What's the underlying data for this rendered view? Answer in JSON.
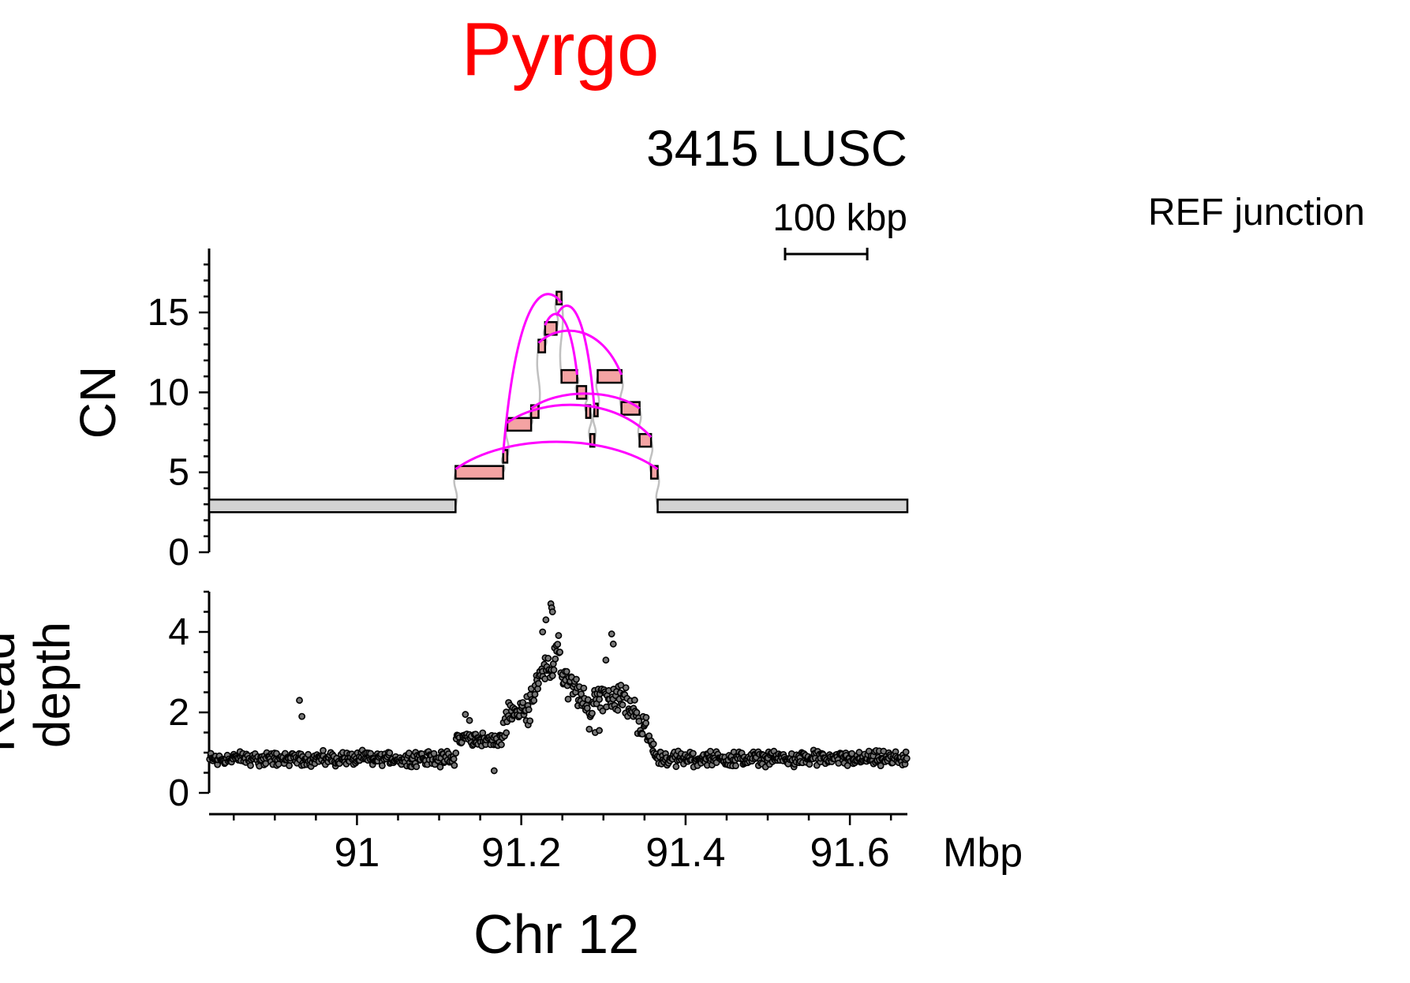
{
  "title": "Pyrgo",
  "subtitle": "3415 LUSC",
  "scale_bar_label": "100 kbp",
  "legend_label": "REF junction",
  "x_axis_label": "Chr 12",
  "x_unit_label": "Mbp",
  "colors": {
    "title": "#ff0000",
    "segment_fill": "#f4a3a3",
    "ref_segment_fill": "#d3d3d3",
    "junction": "#ff00ff",
    "connector": "#c0c0c0",
    "points": "#000000"
  },
  "chart_data": [
    {
      "type": "bar",
      "name": "copy-number-segments",
      "ylabel": "CN",
      "ylim": [
        0,
        19
      ],
      "xlim": [
        90.82,
        91.67
      ],
      "yticks": [
        0,
        5,
        10,
        15
      ],
      "scale_bar_mbp": 0.1,
      "segments": [
        {
          "x0": 90.82,
          "x1": 91.12,
          "cn": 2.9,
          "ref": true
        },
        {
          "x0": 91.12,
          "x1": 91.178,
          "cn": 5.0
        },
        {
          "x0": 91.178,
          "x1": 91.183,
          "cn": 6.0
        },
        {
          "x0": 91.183,
          "x1": 91.212,
          "cn": 8.0
        },
        {
          "x0": 91.212,
          "x1": 91.221,
          "cn": 8.8
        },
        {
          "x0": 91.221,
          "x1": 91.229,
          "cn": 12.9
        },
        {
          "x0": 91.229,
          "x1": 91.243,
          "cn": 14.0
        },
        {
          "x0": 91.243,
          "x1": 91.249,
          "cn": 15.9
        },
        {
          "x0": 91.249,
          "x1": 91.268,
          "cn": 11.0
        },
        {
          "x0": 91.268,
          "x1": 91.279,
          "cn": 10.0
        },
        {
          "x0": 91.279,
          "x1": 91.284,
          "cn": 8.8
        },
        {
          "x0": 91.284,
          "x1": 91.289,
          "cn": 7.0
        },
        {
          "x0": 91.289,
          "x1": 91.293,
          "cn": 8.9
        },
        {
          "x0": 91.293,
          "x1": 91.322,
          "cn": 11.0
        },
        {
          "x0": 91.322,
          "x1": 91.344,
          "cn": 9.0
        },
        {
          "x0": 91.344,
          "x1": 91.358,
          "cn": 7.0
        },
        {
          "x0": 91.358,
          "x1": 91.366,
          "cn": 5.0
        },
        {
          "x0": 91.366,
          "x1": 91.67,
          "cn": 2.9,
          "ref": true
        }
      ],
      "junctions": [
        {
          "x0": 91.12,
          "y0": 5.2,
          "x1": 91.366,
          "y1": 5.2
        },
        {
          "x0": 91.183,
          "y0": 8.1,
          "x1": 91.358,
          "y1": 7.2
        },
        {
          "x0": 91.212,
          "y0": 9.0,
          "x1": 91.344,
          "y1": 9.0
        },
        {
          "x0": 91.221,
          "y0": 13.1,
          "x1": 91.322,
          "y1": 11.1
        },
        {
          "x0": 91.229,
          "y0": 14.2,
          "x1": 91.268,
          "y1": 11.1
        },
        {
          "x0": 91.178,
          "y0": 6.2,
          "x1": 91.249,
          "y1": 15.6
        },
        {
          "x0": 91.243,
          "y0": 14.8,
          "x1": 91.289,
          "y1": 9.0
        }
      ]
    },
    {
      "type": "scatter",
      "name": "read-depth",
      "ylabel": "Read depth",
      "xlabel": "Chr 12",
      "ylim": [
        0,
        5
      ],
      "xlim": [
        90.82,
        91.67
      ],
      "yticks": [
        0,
        2,
        4
      ],
      "xticks": [
        91,
        91.2,
        91.4,
        91.6
      ],
      "xtick_labels": [
        "91",
        "91.2",
        "91.4",
        "91.6"
      ],
      "profile": [
        {
          "x": 90.82,
          "y": 0.85
        },
        {
          "x": 91.12,
          "y": 0.85
        },
        {
          "x": 91.121,
          "y": 1.35
        },
        {
          "x": 91.15,
          "y": 1.35
        },
        {
          "x": 91.175,
          "y": 1.25
        },
        {
          "x": 91.183,
          "y": 2.0
        },
        {
          "x": 91.21,
          "y": 2.1
        },
        {
          "x": 91.22,
          "y": 2.95
        },
        {
          "x": 91.237,
          "y": 3.05
        },
        {
          "x": 91.245,
          "y": 3.7
        },
        {
          "x": 91.25,
          "y": 2.85
        },
        {
          "x": 91.268,
          "y": 2.5
        },
        {
          "x": 91.284,
          "y": 1.9
        },
        {
          "x": 91.29,
          "y": 2.45
        },
        {
          "x": 91.322,
          "y": 2.4
        },
        {
          "x": 91.344,
          "y": 1.8
        },
        {
          "x": 91.358,
          "y": 1.3
        },
        {
          "x": 91.366,
          "y": 0.85
        },
        {
          "x": 91.67,
          "y": 0.85
        }
      ],
      "outliers": [
        {
          "x": 90.93,
          "y": 2.3
        },
        {
          "x": 90.933,
          "y": 1.9
        },
        {
          "x": 91.132,
          "y": 1.95
        },
        {
          "x": 91.137,
          "y": 1.8
        },
        {
          "x": 91.167,
          "y": 0.55
        },
        {
          "x": 91.236,
          "y": 4.7
        },
        {
          "x": 91.237,
          "y": 4.6
        },
        {
          "x": 91.23,
          "y": 4.3
        },
        {
          "x": 91.238,
          "y": 4.5
        },
        {
          "x": 91.226,
          "y": 4.0
        },
        {
          "x": 91.31,
          "y": 3.95
        },
        {
          "x": 91.312,
          "y": 3.7
        },
        {
          "x": 91.303,
          "y": 3.3
        },
        {
          "x": 91.29,
          "y": 1.5
        },
        {
          "x": 91.295,
          "y": 1.55
        }
      ]
    }
  ]
}
